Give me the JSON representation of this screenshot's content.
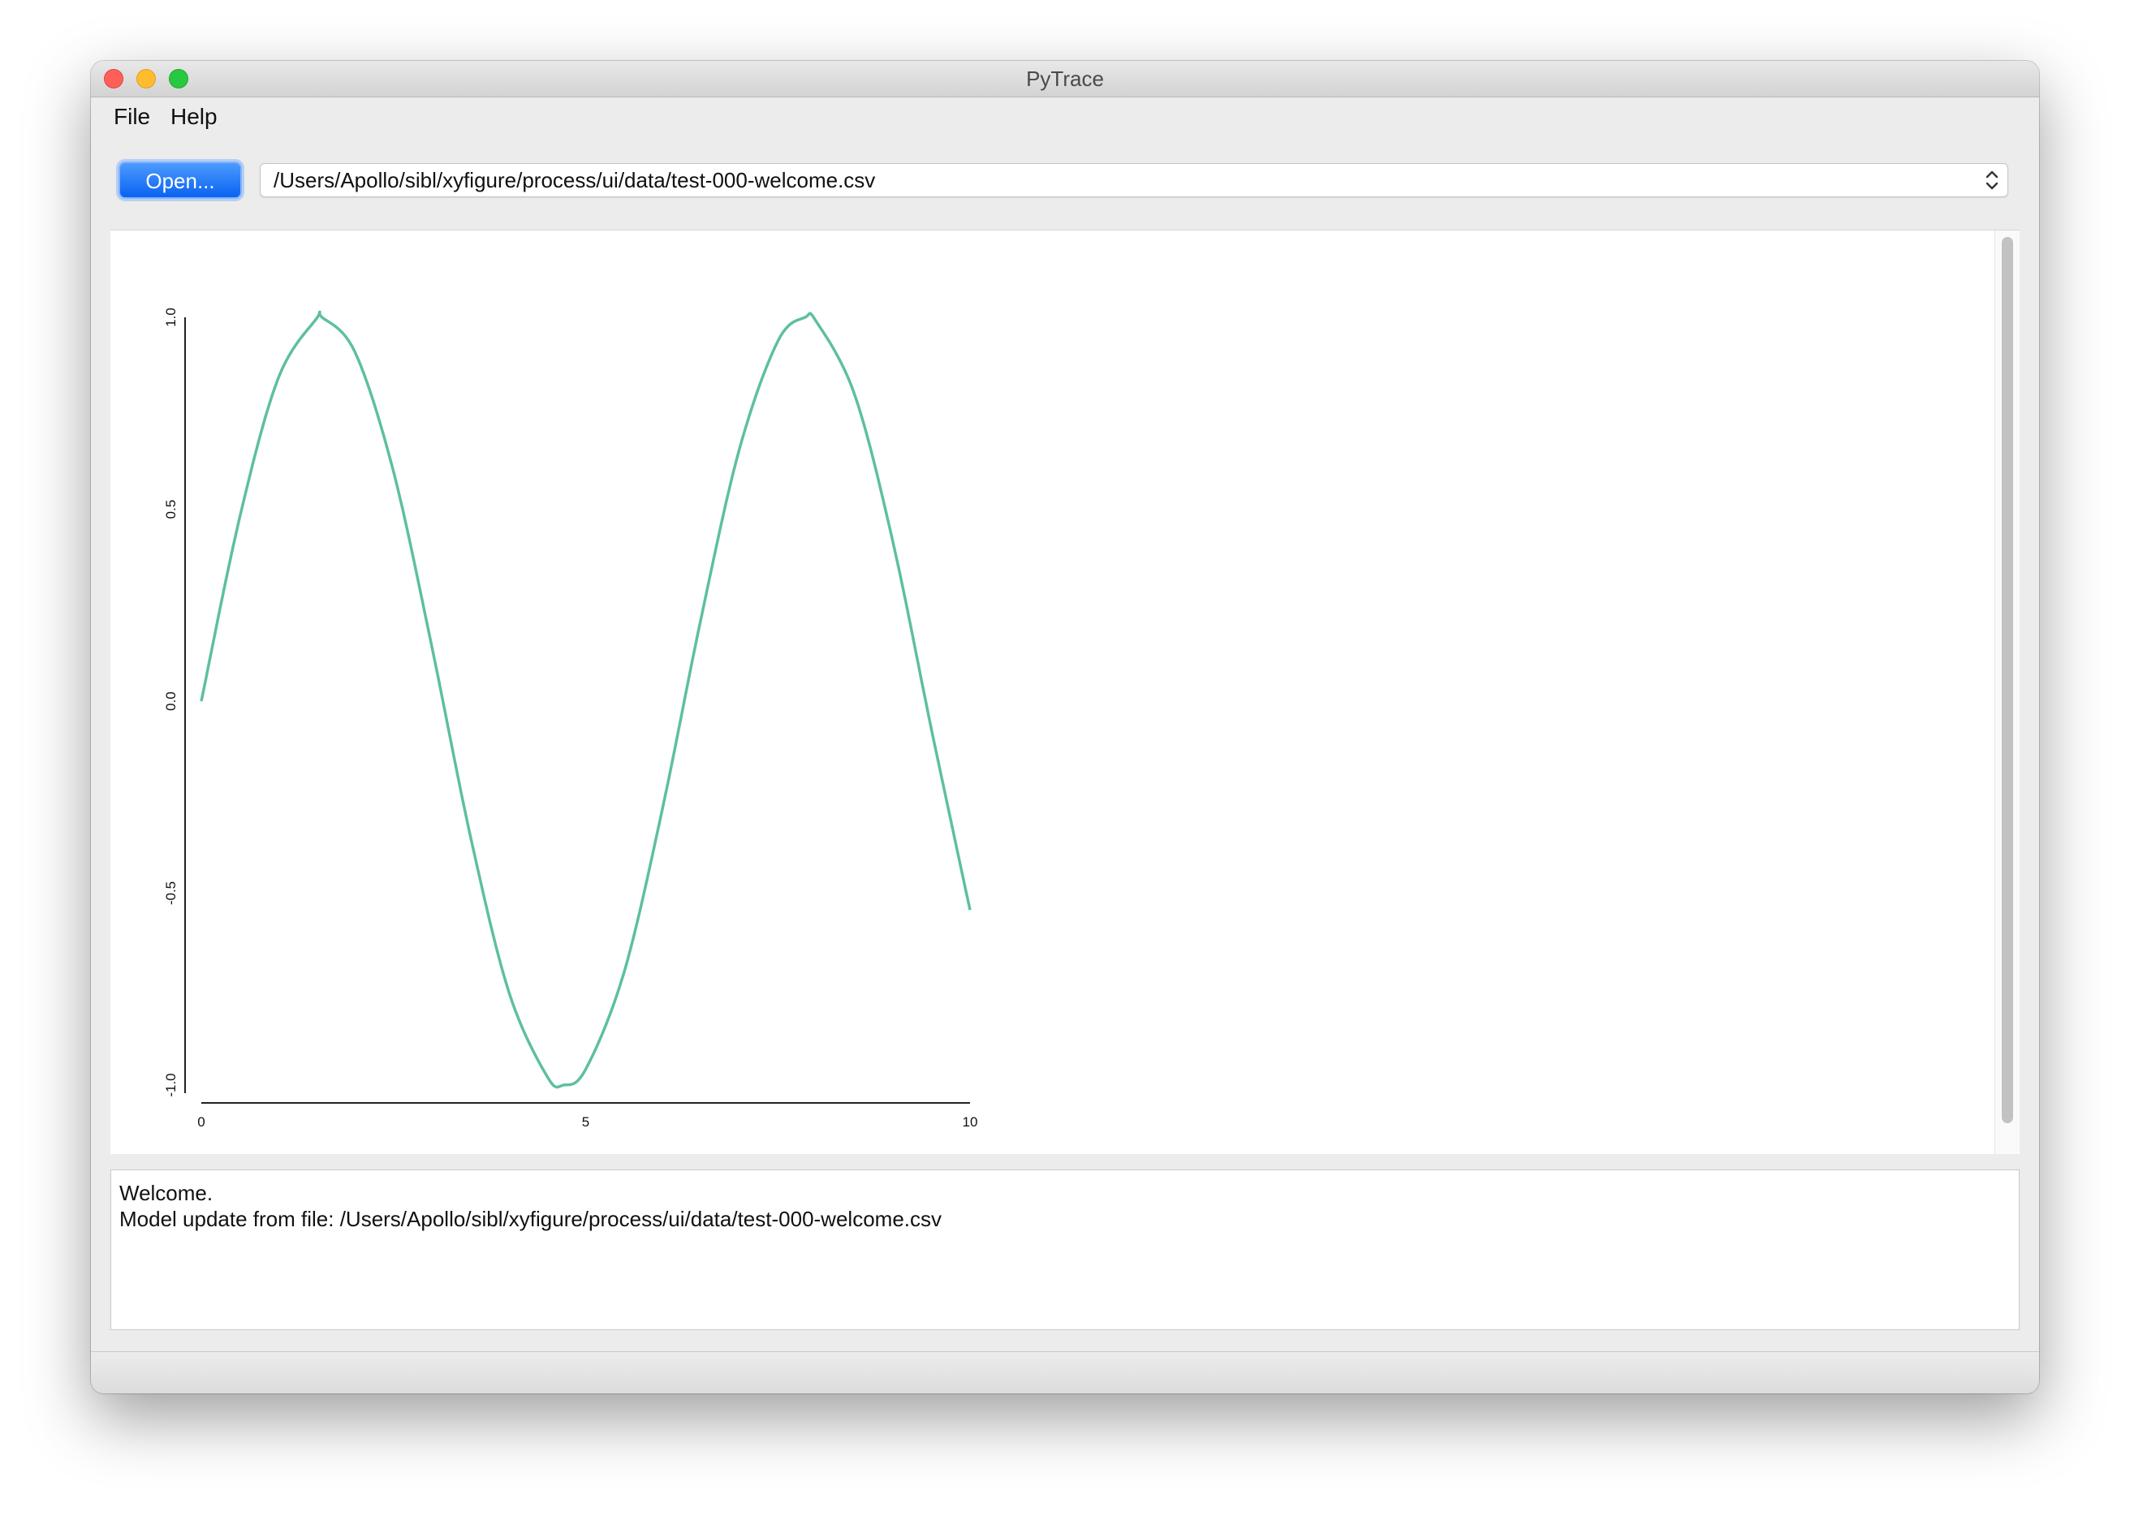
{
  "window": {
    "title": "PyTrace"
  },
  "menubar": {
    "items": [
      {
        "label": "File"
      },
      {
        "label": "Help"
      }
    ]
  },
  "toolbar": {
    "open_label": "Open...",
    "file_path": "/Users/Apollo/sibl/xyfigure/process/ui/data/test-000-welcome.csv"
  },
  "chart_data": {
    "type": "line",
    "series": [
      {
        "color": "#5ebfa0",
        "x": [
          0,
          0.5,
          1,
          1.5,
          1.5708,
          2,
          2.5,
          3,
          3.5,
          4,
          4.5,
          4.7124,
          5,
          5.5,
          6,
          6.5,
          7,
          7.5,
          7.854,
          8,
          8.5,
          9,
          9.5,
          10
        ],
        "y": [
          0,
          0.479,
          0.841,
          0.997,
          1.0,
          0.909,
          0.598,
          0.141,
          -0.351,
          -0.757,
          -0.978,
          -1.0,
          -0.959,
          -0.706,
          -0.279,
          0.215,
          0.657,
          0.938,
          1.0,
          0.989,
          0.798,
          0.412,
          -0.075,
          -0.544
        ]
      }
    ],
    "xlim": [
      0,
      10
    ],
    "ylim": [
      -1.0,
      1.0
    ],
    "x_ticks": [
      "0",
      "5",
      "10"
    ],
    "x_tick_values": [
      0,
      5,
      10
    ],
    "y_ticks": [
      "-1.0",
      "-0.5",
      "0.0",
      "0.5",
      "1.0"
    ],
    "y_tick_values": [
      -1.0,
      -0.5,
      0.0,
      0.5,
      1.0
    ],
    "grid": false
  },
  "log": {
    "lines": [
      "Welcome.",
      "Model update from file: /Users/Apollo/sibl/xyfigure/process/ui/data/test-000-welcome.csv"
    ]
  }
}
